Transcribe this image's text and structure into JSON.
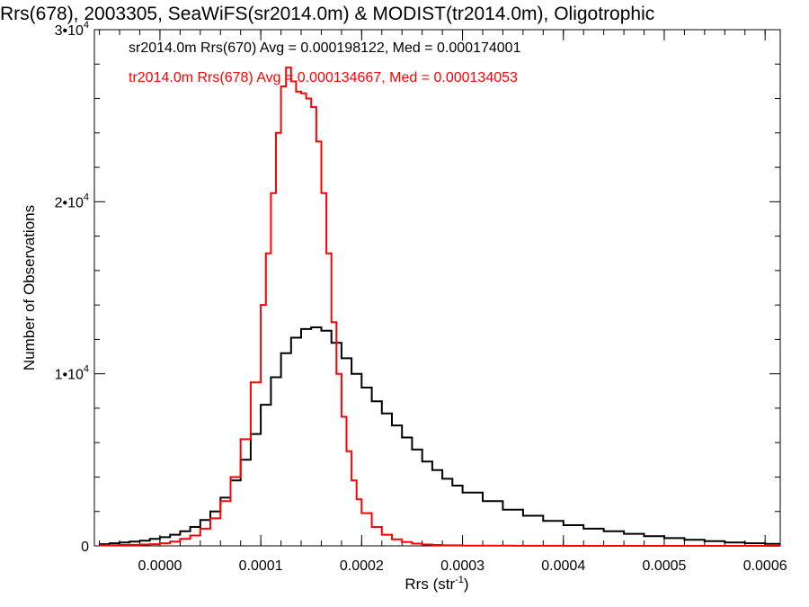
{
  "chart_data": {
    "type": "histogram",
    "title": "Rrs(678), 2003305, SeaWiFS(sr2014.0m) & MODIST(tr2014.0m), Oligotrophic",
    "xlabel": "Rrs (str",
    "xlabel_sup": "-1",
    "xlabel_suffix": ")",
    "ylabel": "Number of Observations",
    "xlim": [
      -6.5e-05,
      0.000615
    ],
    "ylim": [
      0,
      30000
    ],
    "x_ticks": [
      {
        "value": 0.0,
        "label": "0.0000"
      },
      {
        "value": 0.0001,
        "label": "0.0001"
      },
      {
        "value": 0.0002,
        "label": "0.0002"
      },
      {
        "value": 0.0003,
        "label": "0.0003"
      },
      {
        "value": 0.0004,
        "label": "0.0004"
      },
      {
        "value": 0.0005,
        "label": "0.0005"
      },
      {
        "value": 0.0006,
        "label": "0.0006"
      }
    ],
    "y_ticks": [
      {
        "value": 0,
        "label": "0",
        "sup": ""
      },
      {
        "value": 10000,
        "label": "1•10",
        "sup": "4"
      },
      {
        "value": 20000,
        "label": "2•10",
        "sup": "4"
      },
      {
        "value": 30000,
        "label": "3•10",
        "sup": "4"
      }
    ],
    "series": [
      {
        "name": "sr2014.0m Rrs(670) Avg = 0.000198122, Med = 0.000174001",
        "color": "#000000",
        "x": [
          -6e-05,
          -5e-05,
          -4e-05,
          -3e-05,
          -2e-05,
          -1e-05,
          0.0,
          1e-05,
          2e-05,
          3e-05,
          4e-05,
          5e-05,
          6e-05,
          7e-05,
          8e-05,
          9e-05,
          0.0001,
          0.00011,
          0.00012,
          0.00013,
          0.00014,
          0.00015,
          0.00016,
          0.00017,
          0.00018,
          0.00019,
          0.0002,
          0.00021,
          0.00022,
          0.00023,
          0.00024,
          0.00025,
          0.00026,
          0.00027,
          0.00028,
          0.00029,
          0.0003,
          0.00032,
          0.00034,
          0.00036,
          0.00038,
          0.0004,
          0.00042,
          0.00044,
          0.00046,
          0.00048,
          0.0005,
          0.00052,
          0.00054,
          0.00056,
          0.00058,
          0.0006
        ],
        "y": [
          100,
          150,
          200,
          250,
          300,
          400,
          500,
          650,
          850,
          1100,
          1500,
          2000,
          2800,
          3800,
          5000,
          6500,
          8200,
          9800,
          11200,
          12100,
          12600,
          12700,
          12500,
          11800,
          10900,
          10000,
          9200,
          8400,
          7700,
          7000,
          6300,
          5600,
          4900,
          4400,
          3900,
          3500,
          3100,
          2600,
          2100,
          1750,
          1450,
          1200,
          1000,
          850,
          700,
          560,
          450,
          350,
          270,
          200,
          150,
          120
        ]
      },
      {
        "name": "tr2014.0m Rrs(678) Avg = 0.000134667, Med = 0.000134053",
        "color": "#ff0000",
        "x": [
          -6e-05,
          -5e-05,
          -4e-05,
          -3e-05,
          -2e-05,
          -1e-05,
          0.0,
          1e-05,
          2e-05,
          3e-05,
          4e-05,
          5e-05,
          6e-05,
          7e-05,
          8e-05,
          9e-05,
          0.0001,
          0.000105,
          0.00011,
          0.000115,
          0.00012,
          0.000125,
          0.00013,
          0.000135,
          0.00014,
          0.000145,
          0.00015,
          0.000155,
          0.00016,
          0.000165,
          0.00017,
          0.000175,
          0.00018,
          0.000185,
          0.00019,
          0.000195,
          0.0002,
          0.00021,
          0.00022,
          0.00023,
          0.00024,
          0.00025,
          0.00026,
          0.00027,
          0.00028,
          0.0003,
          0.00035,
          0.0004,
          0.0005,
          0.0006
        ],
        "y": [
          30,
          40,
          50,
          60,
          80,
          100,
          150,
          250,
          400,
          600,
          1000,
          1600,
          2600,
          4000,
          6200,
          9500,
          14000,
          17000,
          20500,
          24000,
          26700,
          27800,
          27000,
          26400,
          26300,
          26000,
          25500,
          23500,
          20500,
          17000,
          13000,
          10000,
          7500,
          5500,
          3800,
          2700,
          1900,
          1100,
          650,
          380,
          220,
          130,
          80,
          50,
          30,
          15,
          5,
          2,
          0,
          0
        ]
      }
    ],
    "legend_position": "top-left",
    "grid": false
  }
}
